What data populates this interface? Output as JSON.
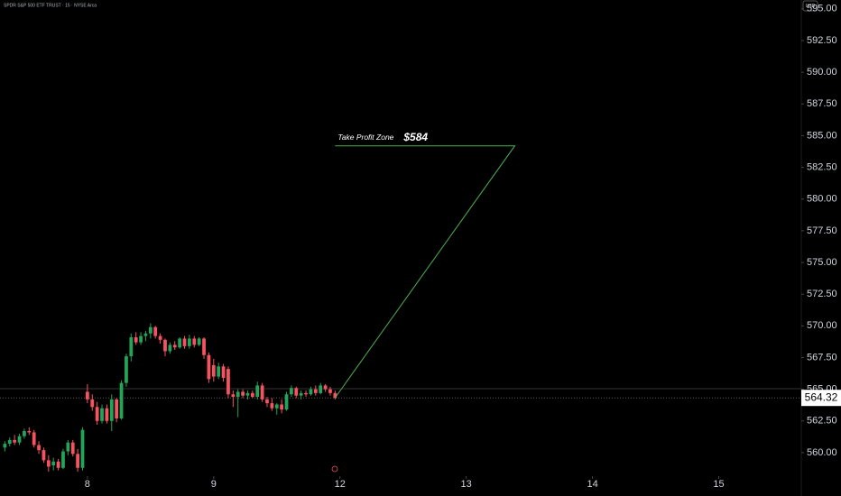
{
  "chart_data": {
    "type": "candlestick",
    "title": "SPDR S&P 500 ETF TRUST · 15 · NYSE Arca",
    "currency": "USD",
    "up_color": "#22a559",
    "down_color": "#f7525f",
    "x": [
      -17,
      -16,
      -15,
      -14,
      -13,
      -12,
      -11,
      -10,
      -9,
      -8,
      -7,
      -6,
      -5,
      -4,
      -3,
      -2,
      -1,
      0,
      1,
      2,
      3,
      4,
      5,
      6,
      7,
      8,
      9,
      10,
      11,
      12,
      13,
      14,
      15,
      16,
      17,
      18,
      19,
      20,
      21,
      22,
      23,
      24,
      25,
      26,
      27,
      28,
      29,
      30,
      31,
      32,
      33,
      34,
      35,
      36,
      37,
      38,
      39,
      40,
      41,
      42,
      43,
      44,
      45,
      46,
      47,
      48,
      49,
      50,
      51
    ],
    "open": [
      560.4,
      560.7,
      561.0,
      560.8,
      561.3,
      561.7,
      561.6,
      560.6,
      560.2,
      559.4,
      559.0,
      559.3,
      558.8,
      560.1,
      560.8,
      559.9,
      558.8,
      564.8,
      564.2,
      563.6,
      562.5,
      563.5,
      562.5,
      564.2,
      562.7,
      565.5,
      567.6,
      569.1,
      568.7,
      569.2,
      569.4,
      569.9,
      569.2,
      568.9,
      568.0,
      568.5,
      568.3,
      569.0,
      568.4,
      569.0,
      568.5,
      569.0,
      567.7,
      566.9,
      566.0,
      566.8,
      566.6,
      564.6,
      564.4,
      564.8,
      564.5,
      564.7,
      564.4,
      565.3,
      564.2,
      563.9,
      563.5,
      563.8,
      563.4,
      564.6,
      565.1,
      564.5,
      564.7,
      564.6,
      565.0,
      564.7,
      565.3,
      565.0,
      564.7
    ],
    "high": [
      560.9,
      561.2,
      561.4,
      561.5,
      561.9,
      562.0,
      561.8,
      560.9,
      560.4,
      559.8,
      559.6,
      559.5,
      560.3,
      561.0,
      561.0,
      560.3,
      562.0,
      565.4,
      564.6,
      564.0,
      563.8,
      563.8,
      564.6,
      564.3,
      565.7,
      567.8,
      569.4,
      569.5,
      569.5,
      569.6,
      570.2,
      570.0,
      569.4,
      569.0,
      568.7,
      568.8,
      569.1,
      569.2,
      569.3,
      569.2,
      569.1,
      569.1,
      567.9,
      567.4,
      567.1,
      567.0,
      566.8,
      564.9,
      565.0,
      565.0,
      564.9,
      564.9,
      565.6,
      565.5,
      564.4,
      564.3,
      563.9,
      564.2,
      564.8,
      565.3,
      565.2,
      564.9,
      564.9,
      565.2,
      565.3,
      565.5,
      565.4,
      565.2,
      564.9
    ],
    "low": [
      560.1,
      560.5,
      560.6,
      560.6,
      561.1,
      561.4,
      560.4,
      559.9,
      559.2,
      558.5,
      558.6,
      558.6,
      558.7,
      559.8,
      559.7,
      558.5,
      558.6,
      563.9,
      563.3,
      562.2,
      562.3,
      562.3,
      561.7,
      562.4,
      562.6,
      565.2,
      567.2,
      568.5,
      568.5,
      568.8,
      569.0,
      569.0,
      568.6,
      567.6,
      567.8,
      568.1,
      568.2,
      568.2,
      568.2,
      568.3,
      568.4,
      567.4,
      565.5,
      565.6,
      565.8,
      565.6,
      564.3,
      563.6,
      562.8,
      564.3,
      564.2,
      564.3,
      564.2,
      564.0,
      563.6,
      563.3,
      563.0,
      563.1,
      563.3,
      564.4,
      564.3,
      564.2,
      564.4,
      564.5,
      564.5,
      564.6,
      564.8,
      564.5,
      564.2
    ],
    "close": [
      560.7,
      561.0,
      560.8,
      561.3,
      561.7,
      561.6,
      560.6,
      560.2,
      559.4,
      558.9,
      559.3,
      558.8,
      560.1,
      560.8,
      559.9,
      558.8,
      561.8,
      564.2,
      563.6,
      562.5,
      563.5,
      562.5,
      564.2,
      562.7,
      565.5,
      567.6,
      569.1,
      568.7,
      569.2,
      569.4,
      569.9,
      569.2,
      568.9,
      568.0,
      568.5,
      568.3,
      569.0,
      568.4,
      569.0,
      568.5,
      569.0,
      567.7,
      565.8,
      566.0,
      566.8,
      565.9,
      564.6,
      564.4,
      564.8,
      564.5,
      564.7,
      564.4,
      565.3,
      564.2,
      563.9,
      563.5,
      563.8,
      563.4,
      564.6,
      565.1,
      564.5,
      564.7,
      564.6,
      565.0,
      564.7,
      565.3,
      565.0,
      564.7,
      564.32
    ],
    "xlim": [
      -18,
      147
    ],
    "xticks": [
      {
        "value": 0,
        "label": "8"
      },
      {
        "value": 26,
        "label": "9"
      },
      {
        "value": 52,
        "label": "12"
      },
      {
        "value": 78,
        "label": "13"
      },
      {
        "value": 104,
        "label": "14"
      },
      {
        "value": 130,
        "label": "15"
      }
    ],
    "ylim": [
      558.36,
      595.7
    ],
    "yticks": [
      {
        "value": 560,
        "label": "560.00"
      },
      {
        "value": 562.5,
        "label": "562.50"
      },
      {
        "value": 565,
        "label": "565.00"
      },
      {
        "value": 567.5,
        "label": "567.50"
      },
      {
        "value": 570,
        "label": "570.00"
      },
      {
        "value": 572.5,
        "label": "572.50"
      },
      {
        "value": 575,
        "label": "575.00"
      },
      {
        "value": 577.5,
        "label": "577.50"
      },
      {
        "value": 580,
        "label": "580.00"
      },
      {
        "value": 582.5,
        "label": "582.50"
      },
      {
        "value": 585,
        "label": "585.00"
      },
      {
        "value": 587.5,
        "label": "587.50"
      },
      {
        "value": 590,
        "label": "590.00"
      },
      {
        "value": 592.5,
        "label": "592.50"
      },
      {
        "value": 595,
        "label": "595.00"
      }
    ],
    "last_price": 564.32,
    "reference_line": 565.05,
    "drawing": {
      "color": "#4caf50",
      "x": [
        51,
        88,
        51
      ],
      "y": [
        564.32,
        584.2,
        584.2
      ],
      "label": "Take Profit Zone",
      "price_label": "$584"
    }
  }
}
